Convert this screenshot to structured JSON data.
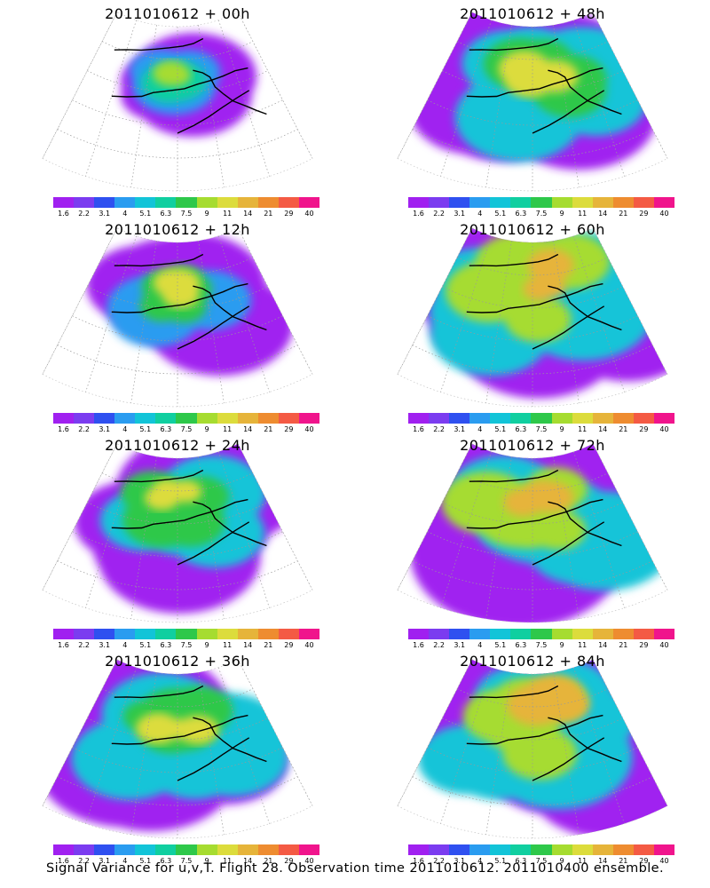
{
  "colorbar": {
    "colors": [
      "#a020f0",
      "#7b3cf0",
      "#2f50f0",
      "#2a9cf0",
      "#12c4d8",
      "#10cfa0",
      "#2ec84a",
      "#a6dc30",
      "#dcdc3c",
      "#e6b43a",
      "#ee8c30",
      "#f45a44",
      "#f0148c"
    ],
    "labels": [
      "1.6",
      "2.2",
      "3.1",
      "4",
      "5.1",
      "6.3",
      "7.5",
      "9",
      "11",
      "14",
      "21",
      "29",
      "40"
    ]
  },
  "panels": [
    {
      "title": "2011010612 + 00h",
      "spread": 0.25,
      "intensity": 0.35
    },
    {
      "title": "2011010612 + 48h",
      "spread": 0.8,
      "intensity": 0.62
    },
    {
      "title": "2011010612 + 12h",
      "spread": 0.45,
      "intensity": 0.45
    },
    {
      "title": "2011010612 + 60h",
      "spread": 0.88,
      "intensity": 0.65
    },
    {
      "title": "2011010612 + 24h",
      "spread": 0.6,
      "intensity": 0.52
    },
    {
      "title": "2011010612 + 72h",
      "spread": 0.95,
      "intensity": 0.68
    },
    {
      "title": "2011010612 + 36h",
      "spread": 0.72,
      "intensity": 0.58
    },
    {
      "title": "2011010612 + 84h",
      "spread": 1.0,
      "intensity": 0.72
    }
  ],
  "caption": "Signal Variance for u,v,T. Flight 28. Observation time 2011010612. 2011010400 ensemble."
}
